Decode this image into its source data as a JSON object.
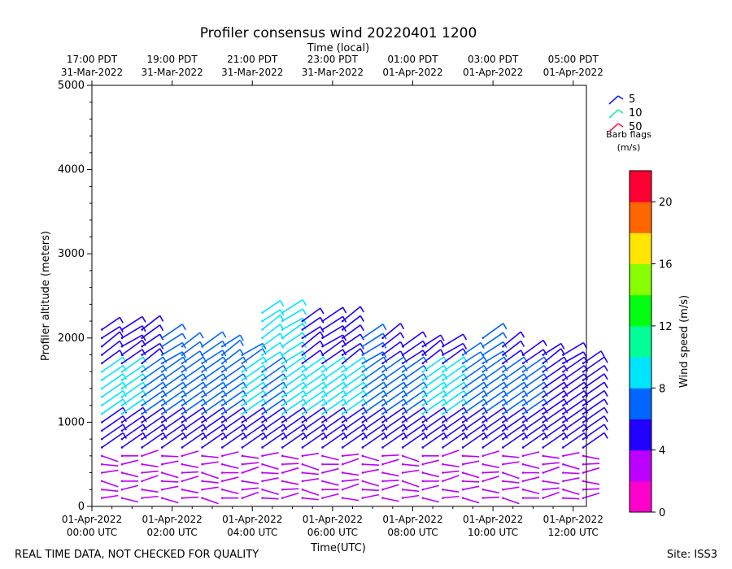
{
  "chart_data": {
    "type": "wind_barbs",
    "title": "Profiler consensus wind 20220401 1200",
    "top_axis_label": "Time (local)",
    "xlabel": "Time(UTC)",
    "ylabel": "Profiler altitude (meters)",
    "colorbar_label": "Wind speed (m/s)",
    "xlim_hours": [
      0,
      12.33
    ],
    "ylim": [
      0,
      5000
    ],
    "y_ticks": [
      0,
      1000,
      2000,
      3000,
      4000,
      5000
    ],
    "y_minor_step": 200,
    "bottom_ticks": [
      {
        "hour": 0,
        "line1": "01-Apr-2022",
        "line2": "00:00 UTC"
      },
      {
        "hour": 2,
        "line1": "01-Apr-2022",
        "line2": "02:00 UTC"
      },
      {
        "hour": 4,
        "line1": "01-Apr-2022",
        "line2": "04:00 UTC"
      },
      {
        "hour": 6,
        "line1": "01-Apr-2022",
        "line2": "06:00 UTC"
      },
      {
        "hour": 8,
        "line1": "01-Apr-2022",
        "line2": "08:00 UTC"
      },
      {
        "hour": 10,
        "line1": "01-Apr-2022",
        "line2": "10:00 UTC"
      },
      {
        "hour": 12,
        "line1": "01-Apr-2022",
        "line2": "12:00 UTC"
      }
    ],
    "top_ticks": [
      {
        "hour": 0,
        "line1": "17:00 PDT",
        "line2": "31-Mar-2022"
      },
      {
        "hour": 2,
        "line1": "19:00 PDT",
        "line2": "31-Mar-2022"
      },
      {
        "hour": 4,
        "line1": "21:00 PDT",
        "line2": "31-Mar-2022"
      },
      {
        "hour": 6,
        "line1": "23:00 PDT",
        "line2": "31-Mar-2022"
      },
      {
        "hour": 8,
        "line1": "01:00 PDT",
        "line2": "01-Apr-2022"
      },
      {
        "hour": 10,
        "line1": "03:00 PDT",
        "line2": "01-Apr-2022"
      },
      {
        "hour": 12,
        "line1": "05:00 PDT",
        "line2": "01-Apr-2022"
      }
    ],
    "barb_flags": {
      "title": "Barb flags",
      "units": "(m/s)",
      "items": [
        {
          "label": "5",
          "color": "#1a1aff"
        },
        {
          "label": "10",
          "color": "#19f0a0"
        },
        {
          "label": "50",
          "color": "#ff1a4d"
        }
      ]
    },
    "colorbar": {
      "min": 0,
      "max": 22,
      "ticks": [
        0,
        4,
        8,
        12,
        16,
        20
      ],
      "colors": [
        "#ff00cc",
        "#bb00ff",
        "#2200ff",
        "#0066ff",
        "#00e5ff",
        "#00ff99",
        "#00ff11",
        "#88ff00",
        "#ffe600",
        "#ff6600",
        "#ff0033"
      ]
    },
    "profile_times_hours": [
      0.25,
      0.75,
      1.25,
      1.75,
      2.25,
      2.75,
      3.25,
      3.75,
      4.25,
      4.75,
      5.25,
      5.75,
      6.25,
      6.75,
      7.25,
      7.75,
      8.25,
      8.75,
      9.25,
      9.75,
      10.25,
      10.75,
      11.25,
      11.75,
      12.25
    ],
    "profile_max_altitude_m": [
      2150,
      2130,
      2150,
      2050,
      1900,
      1930,
      1940,
      1820,
      2300,
      2300,
      2250,
      2280,
      2220,
      2050,
      2000,
      1950,
      1950,
      1970,
      1890,
      2000,
      1950,
      1850,
      1800,
      1850,
      1780
    ],
    "profile_speed_ms": {
      "low_0_700m": [
        2,
        2,
        2,
        2,
        2,
        2,
        2,
        2,
        2,
        2,
        2,
        2,
        2,
        2,
        2,
        2,
        2,
        2,
        2,
        2,
        2,
        2,
        2,
        2,
        2
      ],
      "mid_700_1100m": [
        5,
        4,
        4,
        4,
        4,
        5,
        5,
        5,
        4,
        4,
        4,
        4,
        4,
        4,
        5,
        5,
        5,
        4,
        4,
        4,
        4,
        4,
        4,
        4,
        4
      ],
      "upper_1100_1700m": [
        8.5,
        8.5,
        7.5,
        7.5,
        7.5,
        6.5,
        7,
        9.5,
        6,
        9,
        9,
        8,
        8,
        6.5,
        6,
        6,
        9,
        8.5,
        6,
        6.5,
        7,
        6,
        5,
        5,
        5
      ],
      "top_1700m_up": [
        5,
        5,
        5,
        6,
        7,
        6,
        6,
        7,
        8,
        8,
        4,
        5,
        5,
        6,
        4,
        5,
        5,
        5,
        7,
        6,
        5,
        5,
        5,
        4,
        5
      ]
    },
    "footer_left": "REAL TIME DATA, NOT CHECKED FOR QUALITY",
    "footer_right": "Site: ISS3"
  }
}
